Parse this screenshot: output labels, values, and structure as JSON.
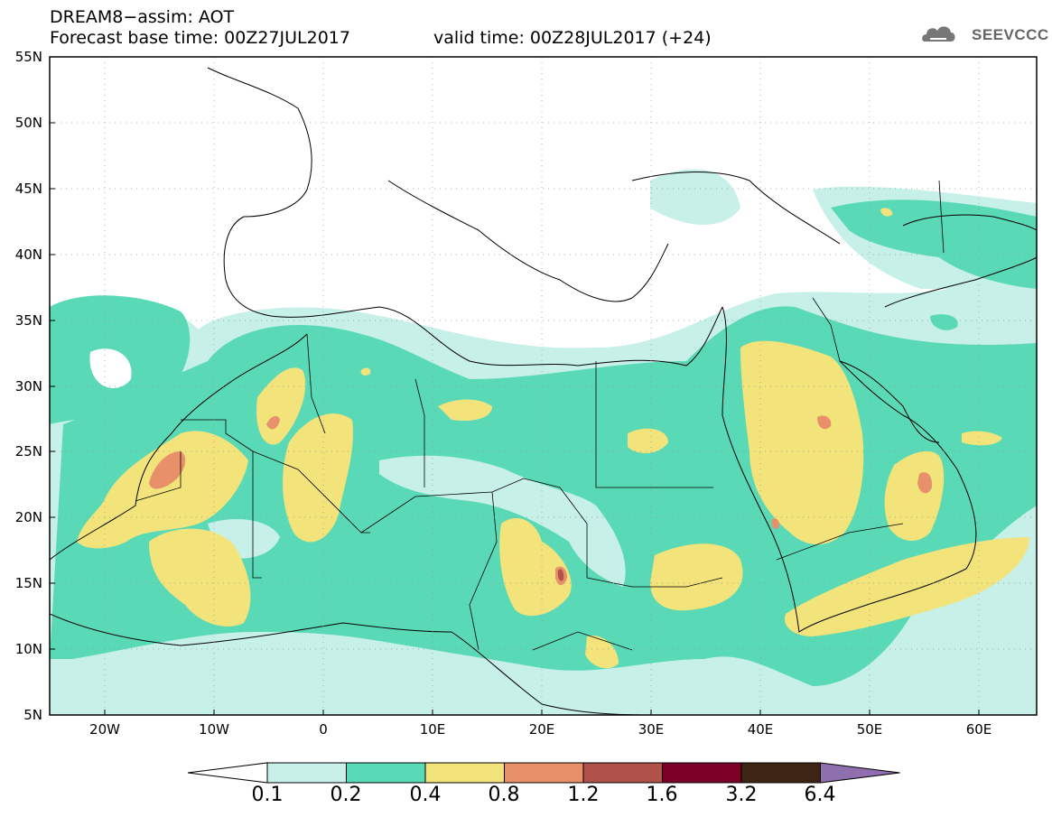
{
  "header": {
    "title": "DREAM8−assim: AOT",
    "base_time": "Forecast base time: 00Z27JUL2017",
    "valid_time": "valid time: 00Z28JUL2017 (+24)"
  },
  "logo": {
    "text": "SEEVCCC",
    "icon": "cloud-icon"
  },
  "map": {
    "region": "North Africa, Mediterranean, Middle East",
    "lat_labels": [
      "55N",
      "50N",
      "45N",
      "40N",
      "35N",
      "30N",
      "25N",
      "20N",
      "15N",
      "10N",
      "5N"
    ],
    "lon_labels": [
      "20W",
      "10W",
      "0",
      "10E",
      "20E",
      "30E",
      "40E",
      "50E",
      "60E"
    ],
    "extent": {
      "lon": [
        -25,
        65
      ],
      "lat": [
        5,
        55
      ]
    }
  },
  "colorbar": {
    "labels": [
      "0.1",
      "0.2",
      "0.4",
      "0.8",
      "1.2",
      "1.6",
      "3.2",
      "6.4"
    ],
    "colors": [
      "#ffffff",
      "#c6f0e8",
      "#5ad9b7",
      "#f2e37a",
      "#e7906a",
      "#b0524a",
      "#7a0026",
      "#3d2415",
      "#8f6fae"
    ]
  },
  "chart_data": {
    "type": "heatmap",
    "title": "DREAM8−assim: AOT",
    "variable": "Aerosol Optical Thickness",
    "levels": [
      0.1,
      0.2,
      0.4,
      0.8,
      1.2,
      1.6,
      3.2,
      6.4
    ],
    "xlim": [
      -25,
      65
    ],
    "ylim": [
      5,
      55
    ]
  }
}
